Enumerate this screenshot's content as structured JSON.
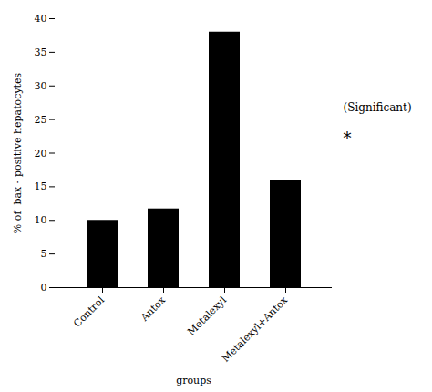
{
  "chart_data": {
    "type": "bar",
    "categories": [
      "Control",
      "Antox",
      "Metalexyl",
      "Metalexyl+Antox"
    ],
    "values": [
      10,
      11.7,
      38,
      16
    ],
    "xlabel": "groups",
    "ylabel": "% of  bax - positive hepatocytes",
    "ylim": [
      0,
      40
    ],
    "yticks": [
      0,
      5,
      10,
      15,
      20,
      25,
      30,
      35,
      40
    ],
    "annotations": [
      "(Significant)",
      "*"
    ],
    "grid": false
  }
}
